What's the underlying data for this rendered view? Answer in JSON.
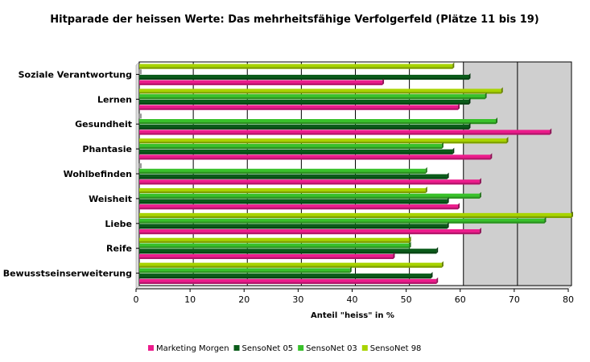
{
  "chart_data": {
    "type": "bar",
    "orientation": "horizontal",
    "title": "Hitparade der heissen Werte: Das mehrheitsfähige Verfolgerfeld (Plätze 11 bis 19)",
    "xlabel": "Anteil \"heiss\" in %",
    "xlim": [
      0,
      80
    ],
    "xticks": [
      "0",
      "10",
      "20",
      "30",
      "40",
      "50",
      "60",
      "70",
      "80"
    ],
    "grid": true,
    "legend_position": "bottom",
    "categories": [
      "Soziale Verantwortung",
      "Lernen",
      "Gesundheit",
      "Phantasie",
      "Wohlbefinden",
      "Weisheit",
      "Liebe",
      "Reife",
      "Bewusstseinserweiterung"
    ],
    "series": [
      {
        "name": "SensoNet 98",
        "color": "#a8d400",
        "values": [
          58,
          67,
          0,
          68,
          0,
          53,
          80,
          50,
          56
        ]
      },
      {
        "name": "SensoNet 03",
        "color": "#39c12b",
        "values": [
          0,
          64,
          66,
          56,
          53,
          63,
          75,
          50,
          39
        ]
      },
      {
        "name": "SensoNet 05",
        "color": "#0b5c1a",
        "values": [
          61,
          61,
          61,
          58,
          57,
          57,
          57,
          55,
          54
        ]
      },
      {
        "name": "Marketing Morgen",
        "color": "#ec1c8c",
        "values": [
          45,
          59,
          76,
          65,
          63,
          59,
          63,
          47,
          55
        ]
      }
    ],
    "legend_order": [
      "Marketing Morgen",
      "SensoNet 05",
      "SensoNet 03",
      "SensoNet 98"
    ]
  }
}
